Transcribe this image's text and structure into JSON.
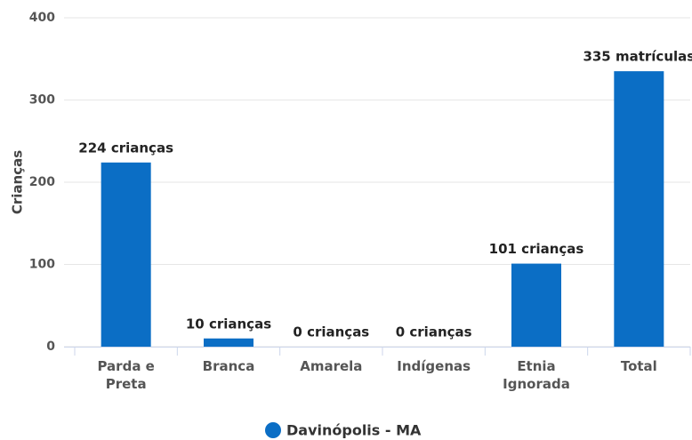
{
  "chart_data": {
    "type": "bar",
    "y_label": "Crianças",
    "categories": [
      "Parda e Preta",
      "Branca",
      "Amarela",
      "Indígenas",
      "Etnia Ignorada",
      "Total"
    ],
    "series": [
      {
        "name": "Davinópolis - MA",
        "color": "#0b6ec5",
        "values": [
          224,
          10,
          0,
          0,
          101,
          335
        ],
        "value_labels": [
          "224 crianças",
          "10 crianças",
          "0 crianças",
          "0 crianças",
          "101 crianças",
          "335 matrículas"
        ]
      }
    ],
    "ylim": [
      0,
      400
    ],
    "yticks": [
      0,
      100,
      200,
      300,
      400
    ],
    "grid": true,
    "legend": "bottom"
  }
}
